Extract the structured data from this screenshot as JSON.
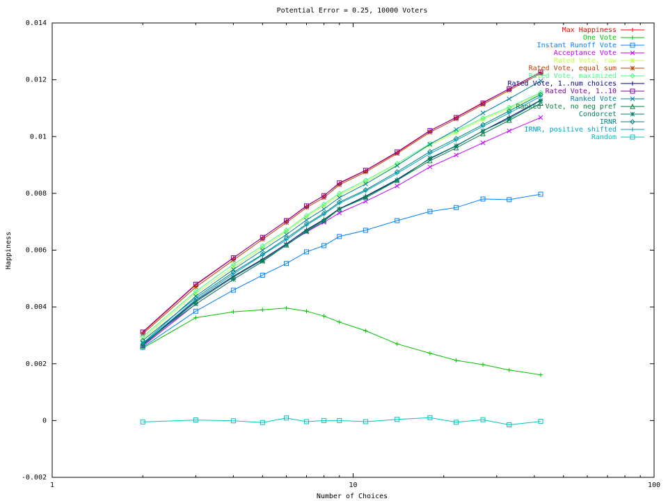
{
  "chart_data": {
    "type": "line",
    "title": "Potential Error = 0.25, 10000 Voters",
    "xlabel": "Number of Choices",
    "ylabel": "Happiness",
    "xscale": "log",
    "xlim": [
      1,
      100
    ],
    "ylim": [
      -0.002,
      0.014
    ],
    "xticks": [
      1,
      10,
      100
    ],
    "xtick_labels": [
      "1",
      "10",
      "100"
    ],
    "yticks": [
      -0.002,
      0,
      0.002,
      0.004,
      0.006,
      0.008,
      0.01,
      0.012,
      0.014
    ],
    "ytick_labels": [
      "-0.002",
      "0",
      "0.002",
      "0.004",
      "0.006",
      "0.008",
      "0.01",
      "0.012",
      "0.014"
    ],
    "grid": false,
    "legend_position": "top-right",
    "x": [
      2,
      3,
      4,
      5,
      6,
      7,
      8,
      9,
      11,
      14,
      18,
      22,
      27,
      33,
      42
    ],
    "series": [
      {
        "name": "Max Happiness",
        "color": "#ff0000",
        "marker": "plus",
        "values": [
          0.0031,
          0.00478,
          0.00572,
          0.00645,
          0.00703,
          0.00755,
          0.00792,
          0.00835,
          0.0088,
          0.00944,
          0.0102,
          0.01068,
          0.0112,
          0.01168,
          0.01227
        ]
      },
      {
        "name": "One Vote",
        "color": "#00c000",
        "marker": "plus",
        "values": [
          0.00255,
          0.00362,
          0.00383,
          0.0039,
          0.00396,
          0.00385,
          0.00368,
          0.00347,
          0.00316,
          0.0027,
          0.00237,
          0.00212,
          0.00197,
          0.00178,
          0.00161
        ]
      },
      {
        "name": "Instant Runoff Vote",
        "color": "#0080ff",
        "marker": "square",
        "values": [
          0.00258,
          0.00385,
          0.00459,
          0.00512,
          0.00553,
          0.00594,
          0.00616,
          0.00648,
          0.0067,
          0.00704,
          0.00736,
          0.0075,
          0.0078,
          0.00778,
          0.00797
        ]
      },
      {
        "name": "Acceptance Vote",
        "color": "#c000ff",
        "marker": "x",
        "values": [
          0.00262,
          0.0041,
          0.00497,
          0.0056,
          0.0062,
          0.00664,
          0.00698,
          0.00731,
          0.00772,
          0.00826,
          0.00893,
          0.00935,
          0.00978,
          0.0102,
          0.01067
        ]
      },
      {
        "name": "Rated Vote, raw",
        "color": "#c0ff40",
        "marker": "star",
        "values": [
          0.00288,
          0.00448,
          0.0054,
          0.00608,
          0.00665,
          0.00717,
          0.00756,
          0.00794,
          0.0084,
          0.009,
          0.0097,
          0.01015,
          0.0106,
          0.01098,
          0.0115
        ]
      },
      {
        "name": "Rated Vote, equal sum",
        "color": "#c04000",
        "marker": "star",
        "values": [
          0.00305,
          0.0047,
          0.00565,
          0.00638,
          0.00697,
          0.0075,
          0.00785,
          0.0083,
          0.00875,
          0.0094,
          0.01015,
          0.01062,
          0.01113,
          0.01163,
          0.01222
        ]
      },
      {
        "name": "Rated Vote, maximized",
        "color": "#40ff80",
        "marker": "diamond",
        "values": [
          0.00295,
          0.00455,
          0.0055,
          0.00615,
          0.0067,
          0.00722,
          0.00762,
          0.008,
          0.00846,
          0.00905,
          0.00975,
          0.0102,
          0.01065,
          0.01103,
          0.01155
        ]
      },
      {
        "name": "Rated Vote, 1..num choices",
        "color": "#000080",
        "marker": "plus",
        "values": [
          0.00268,
          0.00422,
          0.00508,
          0.00568,
          0.00622,
          0.00672,
          0.00708,
          0.00746,
          0.0079,
          0.00849,
          0.00922,
          0.00967,
          0.0102,
          0.01068,
          0.01128
        ]
      },
      {
        "name": "Rated Vote, 1..10",
        "color": "#8000a0",
        "marker": "square",
        "values": [
          0.00312,
          0.0048,
          0.00573,
          0.00645,
          0.00704,
          0.00756,
          0.00792,
          0.00837,
          0.00881,
          0.00946,
          0.01021,
          0.01067,
          0.01118,
          0.01168,
          0.01227
        ]
      },
      {
        "name": "Ranked Vote",
        "color": "#0080a0",
        "marker": "x",
        "values": [
          0.00272,
          0.00438,
          0.00532,
          0.006,
          0.00655,
          0.00706,
          0.00745,
          0.00785,
          0.00833,
          0.00898,
          0.00973,
          0.01025,
          0.01083,
          0.01133,
          0.01196
        ]
      },
      {
        "name": "Ranked Vote, no neg pref",
        "color": "#008040",
        "marker": "triangle",
        "values": [
          0.00265,
          0.00418,
          0.00505,
          0.00565,
          0.00618,
          0.00668,
          0.00706,
          0.00744,
          0.00788,
          0.00846,
          0.00915,
          0.0096,
          0.0101,
          0.01057,
          0.01117
        ]
      },
      {
        "name": "Condorcet",
        "color": "#008060",
        "marker": "star",
        "values": [
          0.00272,
          0.0041,
          0.00497,
          0.0056,
          0.00618,
          0.00666,
          0.00702,
          0.00745,
          0.00784,
          0.00845,
          0.00924,
          0.00968,
          0.0102,
          0.01063,
          0.01127
        ]
      },
      {
        "name": "IRNR",
        "color": "#008080",
        "marker": "diamond",
        "values": [
          0.00282,
          0.00432,
          0.00522,
          0.00585,
          0.00642,
          0.00692,
          0.0073,
          0.00769,
          0.00812,
          0.00876,
          0.00947,
          0.00993,
          0.01042,
          0.0109,
          0.01148
        ]
      },
      {
        "name": "IRNR, positive shifted",
        "color": "#00a0c0",
        "marker": "plus",
        "values": [
          0.0027,
          0.00426,
          0.00516,
          0.00583,
          0.00636,
          0.00688,
          0.00726,
          0.00765,
          0.00808,
          0.0087,
          0.0094,
          0.00987,
          0.01036,
          0.01083,
          0.01141
        ]
      },
      {
        "name": "Random",
        "color": "#00c0c0",
        "marker": "square",
        "values": [
          -5e-05,
          2e-05,
          -1e-05,
          -7e-05,
          9e-05,
          -4e-05,
          0.0,
          0.0,
          -4e-05,
          4e-05,
          0.0001,
          -6e-05,
          3e-05,
          -0.00015,
          -3e-05
        ]
      }
    ]
  }
}
